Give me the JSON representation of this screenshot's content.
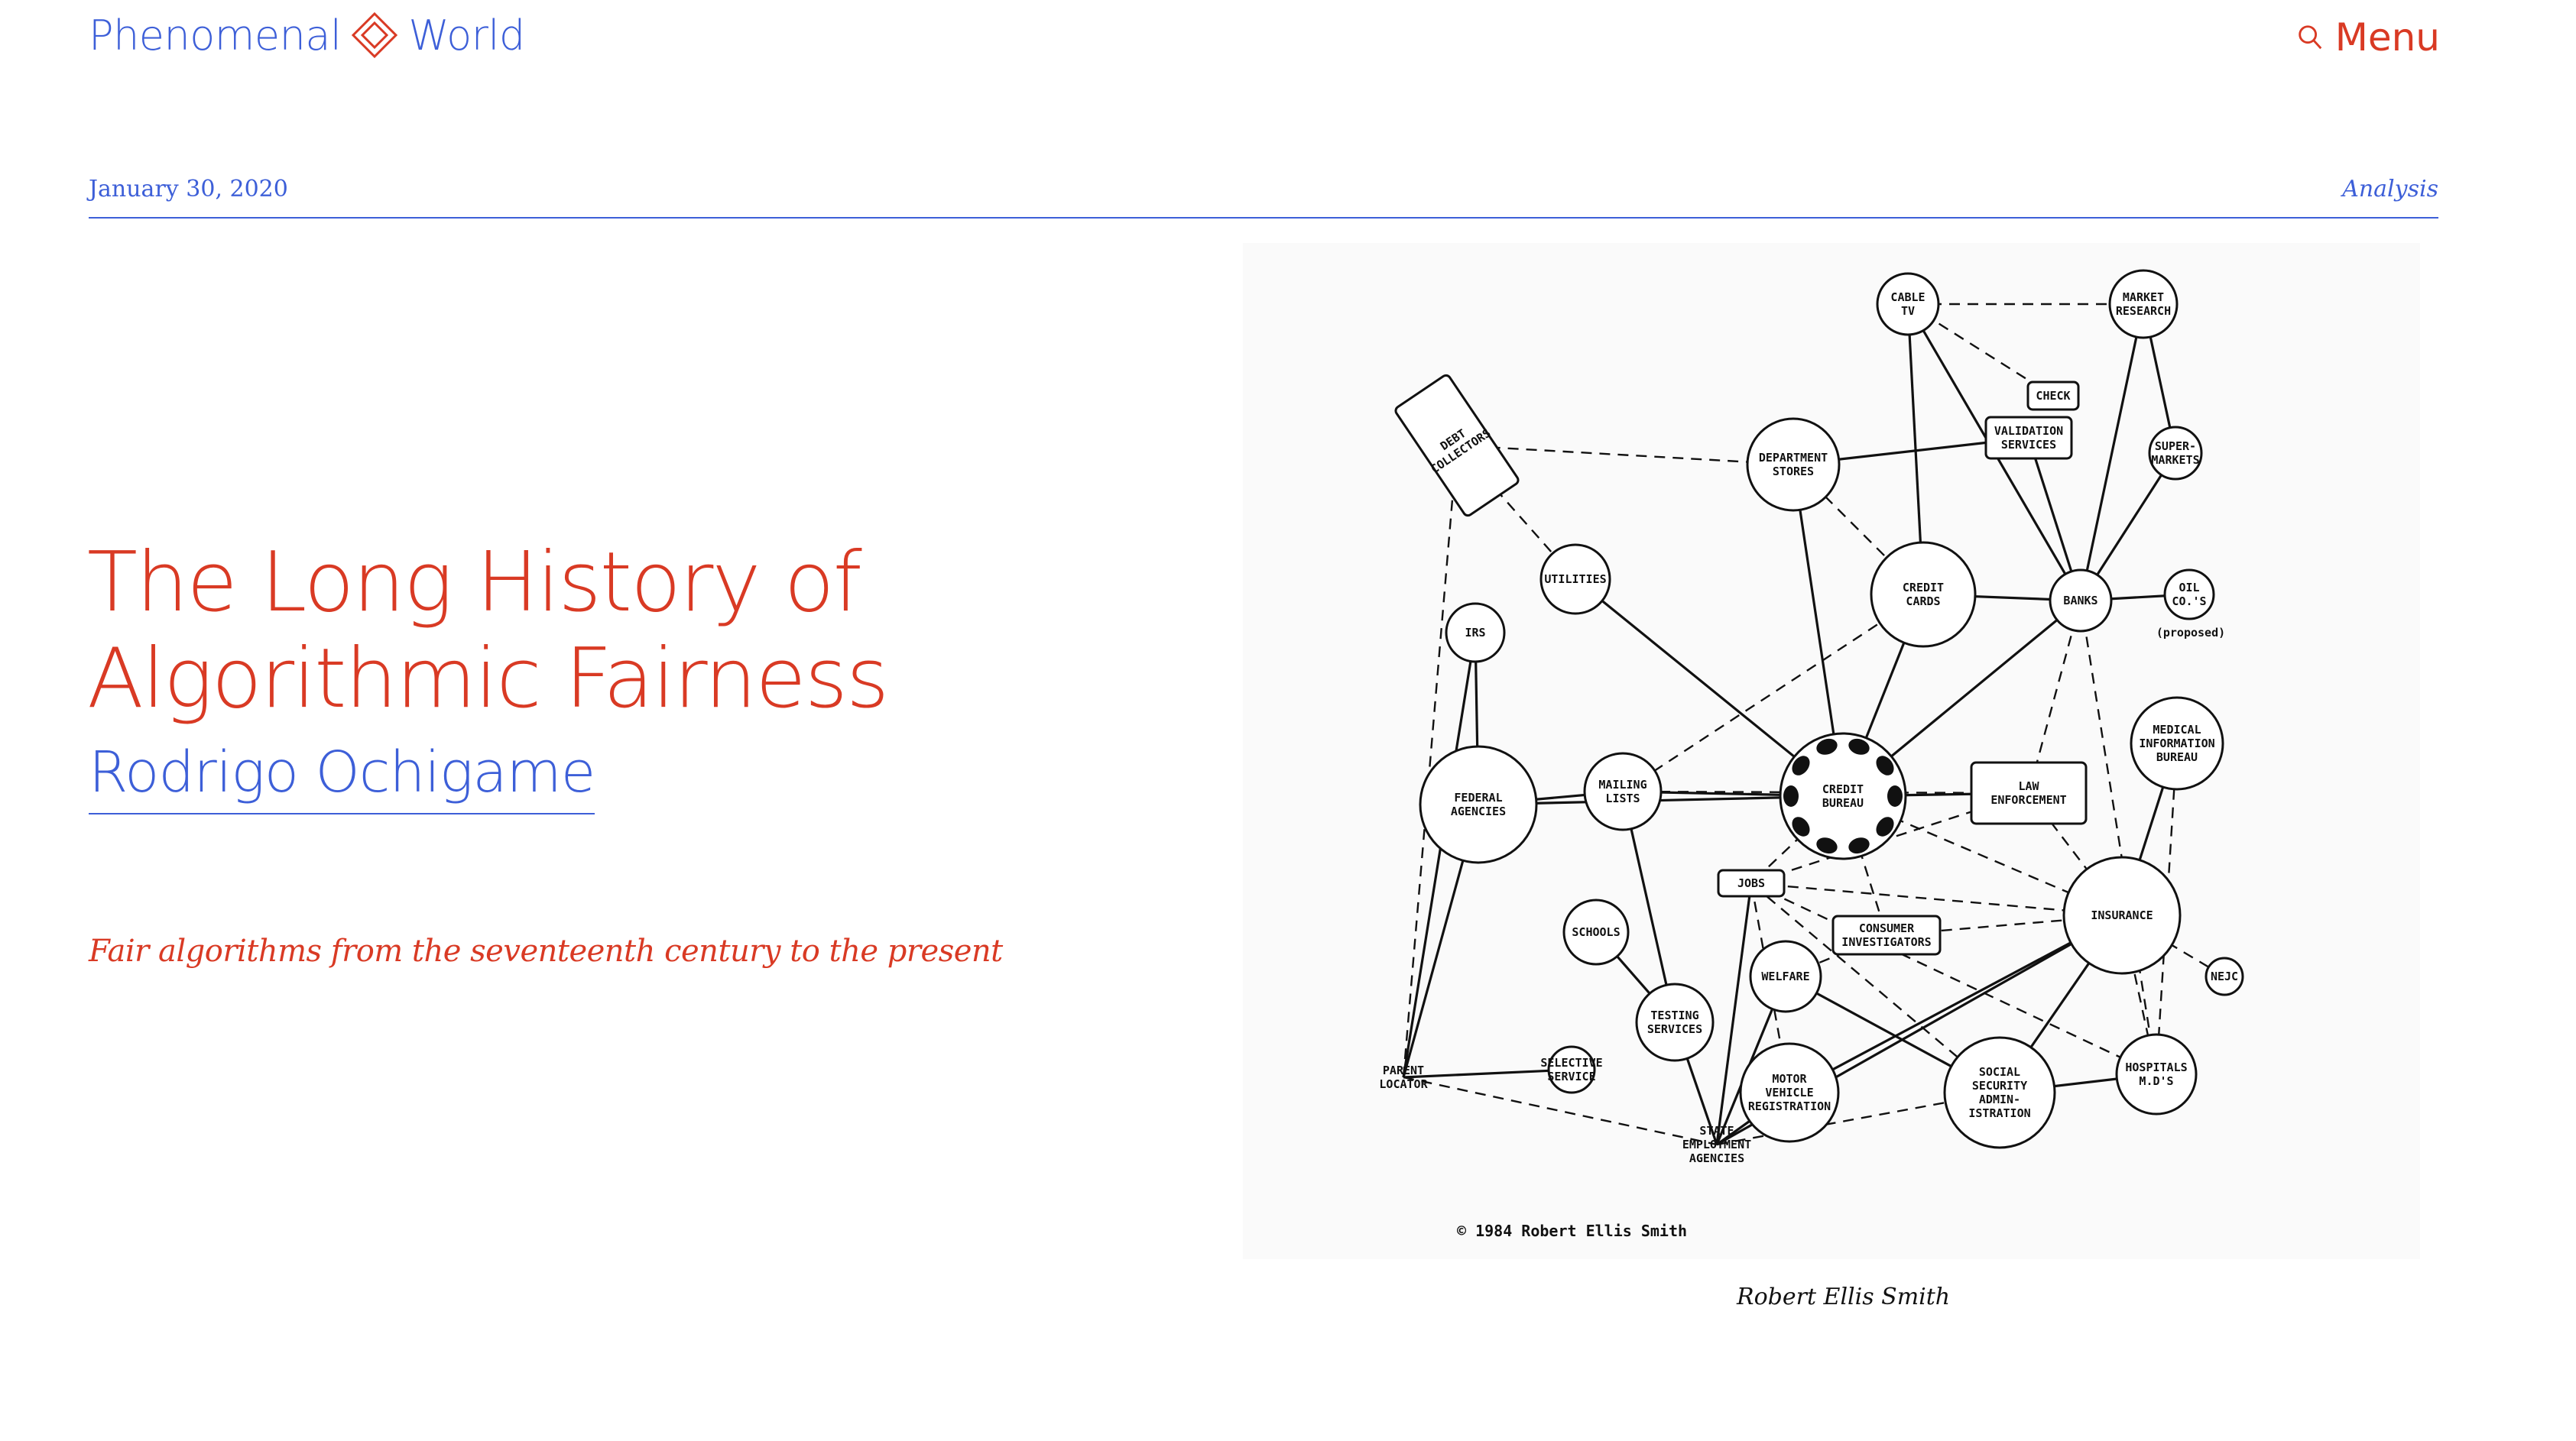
{
  "header": {
    "logo_left": "Phenomenal",
    "logo_right": "World",
    "logo_icon": "diamond-icon",
    "menu_label": "Menu",
    "menu_icon": "search-icon"
  },
  "meta": {
    "date": "January 30, 2020",
    "category": "Analysis"
  },
  "article": {
    "title": "The Long History of Algorithmic Fairness",
    "author": "Rodrigo Ochigame",
    "dek": "Fair algorithms from the seventeenth century to the present"
  },
  "figure": {
    "caption": "Robert Ellis Smith",
    "copyright": "© 1984 Robert Ellis Smith",
    "nodes": [
      {
        "id": "cable_tv",
        "label": [
          "CABLE",
          "TV"
        ]
      },
      {
        "id": "market_research",
        "label": [
          "MARKET",
          "RESEARCH"
        ]
      },
      {
        "id": "check",
        "label": [
          "CHECK"
        ]
      },
      {
        "id": "validation",
        "label": [
          "VALIDATION",
          "SERVICES"
        ]
      },
      {
        "id": "supermarkets",
        "label": [
          "SUPER-",
          "MARKETS"
        ]
      },
      {
        "id": "debt_collectors",
        "label": [
          "DEBT",
          "COLLECTORS"
        ]
      },
      {
        "id": "dept_stores",
        "label": [
          "DEPARTMENT",
          "STORES"
        ]
      },
      {
        "id": "utilities",
        "label": [
          "UTILITIES"
        ]
      },
      {
        "id": "credit_cards",
        "label": [
          "CREDIT",
          "CARDS"
        ]
      },
      {
        "id": "banks",
        "label": [
          "BANKS"
        ]
      },
      {
        "id": "oil_cos",
        "label": [
          "OIL",
          "CO.'S"
        ]
      },
      {
        "id": "proposed",
        "label": [
          "(proposed)"
        ]
      },
      {
        "id": "irs",
        "label": [
          "IRS"
        ]
      },
      {
        "id": "medical",
        "label": [
          "MEDICAL",
          "INFORMATION",
          "BUREAU"
        ]
      },
      {
        "id": "federal",
        "label": [
          "FEDERAL",
          "AGENCIES"
        ]
      },
      {
        "id": "mailing",
        "label": [
          "MAILING",
          "LISTS"
        ]
      },
      {
        "id": "credit_bureau",
        "label": [
          "CREDIT",
          "BUREAU"
        ]
      },
      {
        "id": "law",
        "label": [
          "LAW",
          "ENFORCEMENT"
        ]
      },
      {
        "id": "jobs",
        "label": [
          "JOBS"
        ]
      },
      {
        "id": "insurance",
        "label": [
          "INSURANCE"
        ]
      },
      {
        "id": "schools",
        "label": [
          "SCHOOLS"
        ]
      },
      {
        "id": "consumer_inv",
        "label": [
          "CONSUMER",
          "INVESTIGATORS"
        ]
      },
      {
        "id": "welfare",
        "label": [
          "WELFARE"
        ]
      },
      {
        "id": "nejc",
        "label": [
          "NEJC"
        ]
      },
      {
        "id": "testing",
        "label": [
          "TESTING",
          "SERVICES"
        ]
      },
      {
        "id": "parent_locator",
        "label": [
          "PARENT",
          "LOCATOR"
        ]
      },
      {
        "id": "selective",
        "label": [
          "SELECTIVE",
          "SERVICE"
        ]
      },
      {
        "id": "motor",
        "label": [
          "MOTOR",
          "VEHICLE",
          "REGISTRATION"
        ]
      },
      {
        "id": "social_security",
        "label": [
          "SOCIAL",
          "SECURITY",
          "ADMIN-",
          "ISTRATION"
        ]
      },
      {
        "id": "hospitals",
        "label": [
          "HOSPITALS",
          "M.D'S"
        ]
      },
      {
        "id": "state_employment",
        "label": [
          "STATE",
          "EMPLOYMENT",
          "AGENCIES"
        ]
      }
    ]
  }
}
